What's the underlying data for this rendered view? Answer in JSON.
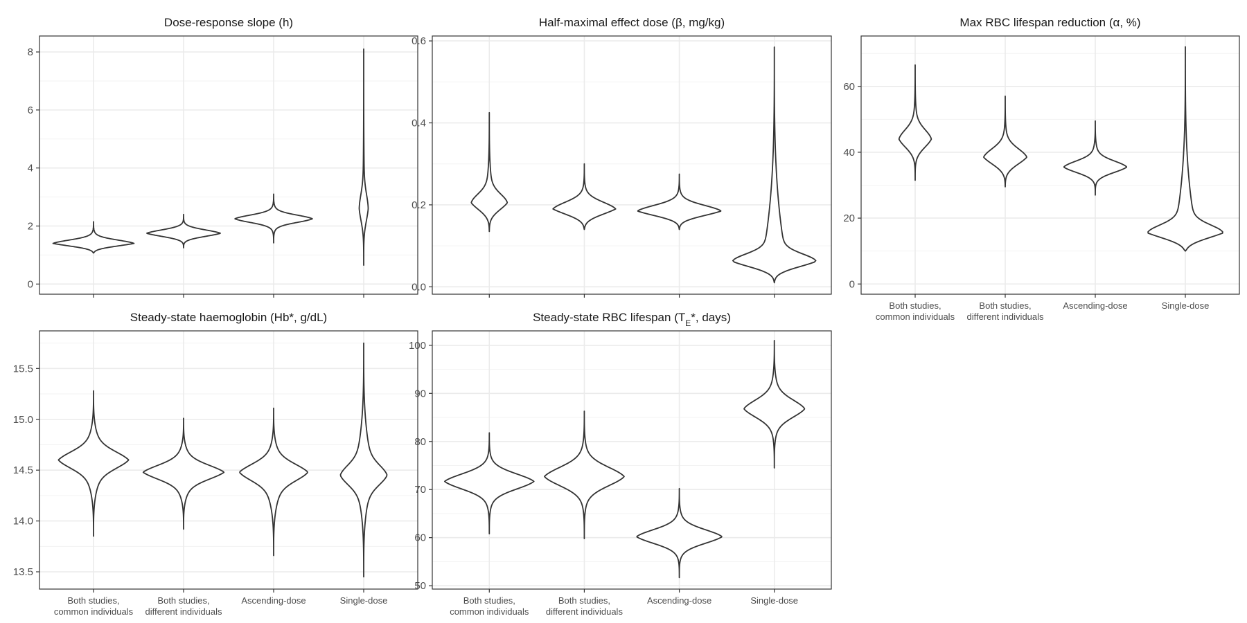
{
  "categories": [
    "Both studies,\ncommon individuals",
    "Both studies,\ndifferent individuals",
    "Ascending-dose",
    "Single-dose"
  ],
  "colors": {
    "outline": "#333333",
    "grid_major": "#ebebeb",
    "grid_minor": "#f3f3f3",
    "border": "#333333",
    "text": "#1a1a1a",
    "tick_text": "#4d4d4d"
  },
  "chart_data": [
    {
      "type": "violin",
      "title": "Dose-response slope (h)",
      "ylim": [
        -0.35,
        8.55
      ],
      "yticks": [
        0,
        2,
        4,
        6,
        8
      ],
      "show_x_labels": false,
      "grid": true,
      "series": [
        {
          "category": "Both studies,\ncommon individuals",
          "min": 1.07,
          "max": 2.15,
          "mode": 1.4,
          "max_width": 0.45,
          "peak": 0.3,
          "mode_sharp": 0.7,
          "mid_half": 0.18
        },
        {
          "category": "Both studies,\ndifferent individuals",
          "min": 1.25,
          "max": 2.4,
          "mode": 1.75,
          "max_width": 0.41,
          "peak": 0.3,
          "mode_sharp": 0.65,
          "mid_half": 0.2
        },
        {
          "category": "Ascending-dose",
          "min": 1.42,
          "max": 3.1,
          "mode": 2.25,
          "max_width": 0.43,
          "peak": 0.3,
          "mode_sharp": 0.55,
          "mid_half": 0.25
        },
        {
          "category": "Single-dose",
          "min": 0.65,
          "max": 8.1,
          "mode": 2.6,
          "max_width": 0.05,
          "peak": 0.25,
          "mode_sharp": 0.45,
          "mid_half": 1.1
        }
      ]
    },
    {
      "type": "violin",
      "title": "Half-maximal effect dose (β, mg/kg)",
      "ylim": [
        -0.018,
        0.612
      ],
      "yticks": [
        0.0,
        0.2,
        0.4,
        0.6
      ],
      "tick_format": 1,
      "show_x_labels": false,
      "grid": true,
      "series": [
        {
          "category": "Both studies,\ncommon individuals",
          "min": 0.135,
          "max": 0.425,
          "mode": 0.205,
          "max_width": 0.19,
          "peak": 0.3,
          "mode_sharp": 0.55,
          "mid_half": 0.04
        },
        {
          "category": "Both studies,\ndifferent individuals",
          "min": 0.14,
          "max": 0.3,
          "mode": 0.19,
          "max_width": 0.33,
          "peak": 0.3,
          "mode_sharp": 0.6,
          "mid_half": 0.03
        },
        {
          "category": "Ascending-dose",
          "min": 0.14,
          "max": 0.275,
          "mode": 0.185,
          "max_width": 0.44,
          "peak": 0.3,
          "mode_sharp": 0.6,
          "mid_half": 0.025
        },
        {
          "category": "Single-dose",
          "min": 0.01,
          "max": 0.585,
          "mode": 0.062,
          "max_width": 0.44,
          "peak": 0.3,
          "mode_sharp": 0.6,
          "mid_half": 0.03
        }
      ]
    },
    {
      "type": "violin",
      "title": "Max RBC lifespan reduction (α, %)",
      "ylim": [
        -3.1,
        75.3
      ],
      "yticks": [
        0,
        20,
        40,
        60
      ],
      "show_x_labels": true,
      "grid": true,
      "series": [
        {
          "category": "Both studies,\ncommon individuals",
          "min": 31.5,
          "max": 66.5,
          "mode": 44.0,
          "max_width": 0.18,
          "peak": 0.3,
          "mode_sharp": 0.5,
          "mid_half": 6.0
        },
        {
          "category": "Both studies,\ndifferent individuals",
          "min": 29.5,
          "max": 57.0,
          "mode": 38.5,
          "max_width": 0.24,
          "peak": 0.3,
          "mode_sharp": 0.55,
          "mid_half": 5.0
        },
        {
          "category": "Ascending-dose",
          "min": 27.0,
          "max": 49.5,
          "mode": 35.5,
          "max_width": 0.35,
          "peak": 0.3,
          "mode_sharp": 0.55,
          "mid_half": 3.5
        },
        {
          "category": "Single-dose",
          "min": 10.0,
          "max": 72.0,
          "mode": 15.5,
          "max_width": 0.42,
          "peak": 0.3,
          "mode_sharp": 0.6,
          "mid_half": 4.0
        }
      ]
    },
    {
      "type": "violin",
      "title": "Steady-state haemoglobin (Hb*, g/dL)",
      "ylim": [
        13.33,
        15.87
      ],
      "yticks": [
        13.5,
        14.0,
        14.5,
        15.0,
        15.5
      ],
      "tick_format": 1,
      "show_x_labels": true,
      "grid": true,
      "series": [
        {
          "category": "Both studies,\ncommon individuals",
          "min": 13.85,
          "max": 15.28,
          "mode": 14.6,
          "max_width": 0.39,
          "peak": 0.5,
          "mode_sharp": 0.25,
          "mid_half": 0.35
        },
        {
          "category": "Both studies,\ndifferent individuals",
          "min": 13.92,
          "max": 15.01,
          "mode": 14.48,
          "max_width": 0.45,
          "peak": 0.5,
          "mode_sharp": 0.25,
          "mid_half": 0.3
        },
        {
          "category": "Ascending-dose",
          "min": 13.66,
          "max": 15.11,
          "mode": 14.48,
          "max_width": 0.38,
          "peak": 0.5,
          "mode_sharp": 0.25,
          "mid_half": 0.35
        },
        {
          "category": "Single-dose",
          "min": 13.45,
          "max": 15.75,
          "mode": 14.45,
          "max_width": 0.26,
          "peak": 0.5,
          "mode_sharp": 0.25,
          "mid_half": 0.4
        }
      ]
    },
    {
      "type": "violin",
      "title": "Steady-state RBC lifespan (T_E*, days)",
      "title_parts": [
        "Steady-state RBC lifespan (T",
        "E",
        "*, days)"
      ],
      "ylim": [
        49.3,
        103.0
      ],
      "yticks": [
        50,
        60,
        70,
        80,
        90,
        100
      ],
      "show_x_labels": true,
      "grid": true,
      "series": [
        {
          "category": "Both studies,\ncommon individuals",
          "min": 60.8,
          "max": 81.8,
          "mode": 71.7,
          "max_width": 0.47,
          "peak": 0.35,
          "mode_sharp": 0.35,
          "mid_half": 5.0
        },
        {
          "category": "Both studies,\ndifferent individuals",
          "min": 59.8,
          "max": 86.3,
          "mode": 72.7,
          "max_width": 0.42,
          "peak": 0.35,
          "mode_sharp": 0.35,
          "mid_half": 6.0
        },
        {
          "category": "Ascending-dose",
          "min": 51.7,
          "max": 70.2,
          "mode": 60.2,
          "max_width": 0.45,
          "peak": 0.35,
          "mode_sharp": 0.35,
          "mid_half": 4.5
        },
        {
          "category": "Single-dose",
          "min": 74.5,
          "max": 101.0,
          "mode": 86.8,
          "max_width": 0.32,
          "peak": 0.4,
          "mode_sharp": 0.3,
          "mid_half": 6.5
        }
      ]
    }
  ]
}
